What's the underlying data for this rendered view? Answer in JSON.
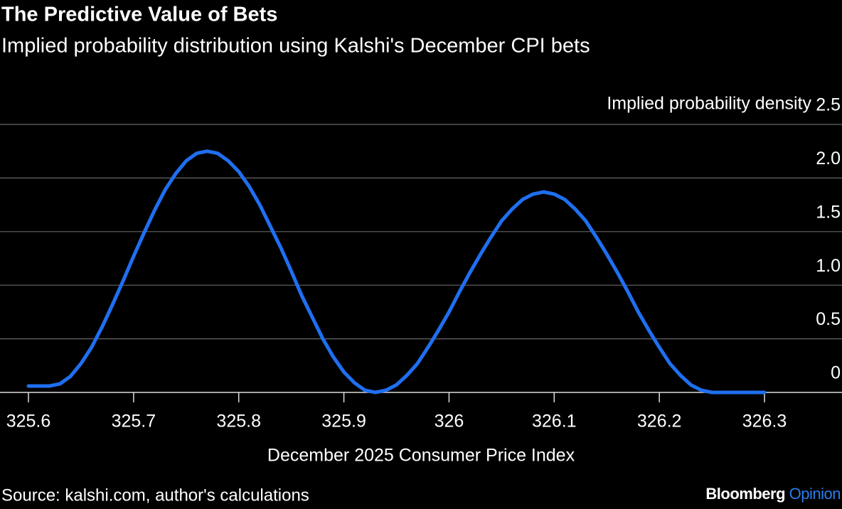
{
  "chart_data": {
    "type": "line",
    "title": "The Predictive Value of Bets",
    "subtitle": "Implied probability distribution using Kalshi's December CPI bets",
    "y_label": "Implied probability density",
    "x_label": "December 2025 Consumer Price Index",
    "source": "Source: kalshi.com, author's calculations",
    "color": "#1f6ff0",
    "grid": true,
    "xlim": [
      325.6,
      326.3
    ],
    "xticks": [
      325.6,
      325.7,
      325.8,
      325.9,
      326,
      326.1,
      326.2,
      326.3
    ],
    "ylim": [
      0,
      2.5
    ],
    "yticks": [
      0,
      0.5,
      {
        "value": 1,
        "label": "1.0"
      },
      1.5,
      {
        "value": 2,
        "label": "2.0"
      },
      2.5
    ],
    "x": [
      325.6,
      325.61,
      325.62,
      325.63,
      325.64,
      325.65,
      325.66,
      325.67,
      325.68,
      325.69,
      325.7,
      325.71,
      325.72,
      325.73,
      325.74,
      325.75,
      325.76,
      325.77,
      325.78,
      325.79,
      325.8,
      325.81,
      325.82,
      325.83,
      325.84,
      325.85,
      325.86,
      325.87,
      325.88,
      325.89,
      325.9,
      325.91,
      325.92,
      325.93,
      325.94,
      325.95,
      325.96,
      325.97,
      325.98,
      325.99,
      326,
      326.01,
      326.02,
      326.03,
      326.04,
      326.05,
      326.06,
      326.07,
      326.08,
      326.09,
      326.1,
      326.11,
      326.12,
      326.13,
      326.14,
      326.15,
      326.16,
      326.17,
      326.18,
      326.19,
      326.2,
      326.21,
      326.22,
      326.23,
      326.24,
      326.25,
      326.26,
      326.27,
      326.28,
      326.29,
      326.3
    ],
    "values": [
      0.06,
      0.06,
      0.06,
      0.08,
      0.15,
      0.27,
      0.42,
      0.61,
      0.82,
      1.04,
      1.27,
      1.49,
      1.7,
      1.89,
      2.04,
      2.16,
      2.23,
      2.25,
      2.23,
      2.16,
      2.06,
      1.92,
      1.75,
      1.55,
      1.35,
      1.13,
      0.9,
      0.7,
      0.5,
      0.33,
      0.19,
      0.09,
      0.02,
      0,
      0.02,
      0.07,
      0.16,
      0.27,
      0.42,
      0.58,
      0.75,
      0.94,
      1.12,
      1.29,
      1.45,
      1.6,
      1.71,
      1.8,
      1.85,
      1.87,
      1.85,
      1.8,
      1.71,
      1.6,
      1.45,
      1.29,
      1.12,
      0.94,
      0.75,
      0.58,
      0.42,
      0.27,
      0.16,
      0.07,
      0.02,
      0,
      0,
      0,
      0,
      0,
      0
    ]
  },
  "brand": {
    "name": "Bloomberg",
    "tag": "Opinion"
  }
}
